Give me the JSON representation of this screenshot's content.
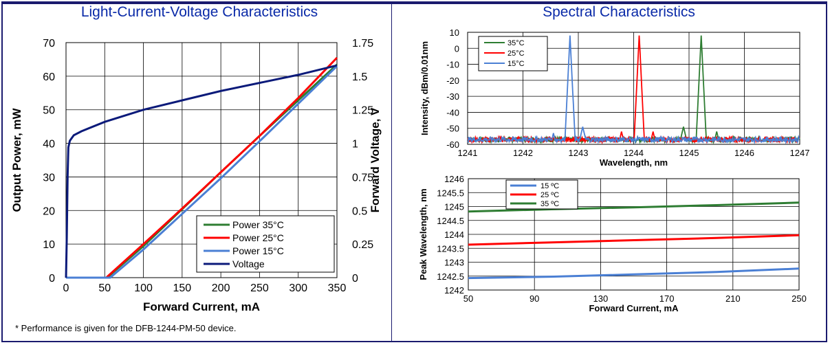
{
  "panels": {
    "left_title": "Light-Current-Voltage Characteristics",
    "right_title": "Spectral Characteristics"
  },
  "footnote": "* Performance is given for the DFB-1244-PM-50 device.",
  "colors": {
    "frame": "#1a1a6e",
    "title": "#0a2aa8",
    "green": "#2e7d32",
    "red": "#ff0000",
    "blue": "#4a7fd4",
    "navy": "#0b1a7a"
  },
  "chart_data": [
    {
      "type": "line",
      "xlabel": "Forward Current, mA",
      "ylabel": "Output Power, mW",
      "y2label": "Forward Voltage, V",
      "xlim": [
        0,
        350
      ],
      "ylim": [
        0,
        70
      ],
      "y2lim": [
        0,
        1.75
      ],
      "xticks": [
        "0",
        "50",
        "100",
        "150",
        "200",
        "250",
        "300",
        "350"
      ],
      "yticks": [
        "0",
        "10",
        "20",
        "30",
        "40",
        "50",
        "60",
        "70"
      ],
      "y2ticks": [
        "0",
        "0.25",
        "0.5",
        "0.75",
        "1",
        "1.25",
        "1.5",
        "1.75"
      ],
      "grid": true,
      "legend_position": "bottom-right",
      "series": [
        {
          "name": "Power  35°C",
          "color": "#2e7d32",
          "axis": "left",
          "x": [
            0,
            53,
            100,
            150,
            200,
            250,
            300,
            350
          ],
          "y": [
            0,
            0,
            9.4,
            20.4,
            31.4,
            42.2,
            52.8,
            63.5
          ]
        },
        {
          "name": "Power  25°C",
          "color": "#ff0000",
          "axis": "left",
          "x": [
            0,
            52,
            100,
            150,
            200,
            250,
            300,
            350
          ],
          "y": [
            0,
            0,
            10.0,
            20.6,
            31.4,
            42.2,
            53.5,
            65.5
          ]
        },
        {
          "name": "Power  15°C",
          "color": "#4a7fd4",
          "axis": "left",
          "x": [
            0,
            57,
            100,
            150,
            200,
            250,
            300,
            350
          ],
          "y": [
            0,
            0,
            8.4,
            19.0,
            29.6,
            40.6,
            51.8,
            63.0
          ]
        },
        {
          "name": "Voltage",
          "color": "#0b1a7a",
          "axis": "right",
          "x": [
            0,
            1,
            2,
            3,
            5,
            10,
            20,
            50,
            100,
            150,
            200,
            250,
            300,
            350
          ],
          "y": [
            0,
            0.3,
            0.75,
            0.97,
            1.02,
            1.06,
            1.09,
            1.16,
            1.25,
            1.32,
            1.39,
            1.45,
            1.51,
            1.58
          ]
        }
      ]
    },
    {
      "type": "line",
      "xlabel": "Wavelength, nm",
      "ylabel": "Intensity, dBm/0.01nm",
      "xlim": [
        1241,
        1247
      ],
      "ylim": [
        -60,
        10
      ],
      "xticks": [
        "1241",
        "1242",
        "1243",
        "1244",
        "1245",
        "1246",
        "1247"
      ],
      "yticks": [
        "10",
        "0",
        "-10",
        "-20",
        "-30",
        "-40",
        "-50",
        "-60"
      ],
      "grid": true,
      "legend_position": "top-left",
      "series": [
        {
          "name": "35°C",
          "color": "#2e7d32",
          "peak_x": 1245.22,
          "peak_y": 8,
          "floor": -57,
          "side_peaks": [
            [
              1244.9,
              -49
            ],
            [
              1245.5,
              -52
            ]
          ]
        },
        {
          "name": "25°C",
          "color": "#ff0000",
          "peak_x": 1244.1,
          "peak_y": 8,
          "floor": -57,
          "side_peaks": [
            [
              1243.78,
              -52
            ],
            [
              1244.35,
              -52
            ]
          ]
        },
        {
          "name": "15°C",
          "color": "#4a7fd4",
          "peak_x": 1242.85,
          "peak_y": 8,
          "floor": -57,
          "side_peaks": [
            [
              1242.55,
              -53
            ],
            [
              1243.08,
              -49
            ]
          ]
        }
      ]
    },
    {
      "type": "line",
      "xlabel": "Forward Current, mA",
      "ylabel": "Peak Wavelength, nm",
      "xlim": [
        50,
        250
      ],
      "ylim": [
        1242,
        1246
      ],
      "xticks": [
        "50",
        "90",
        "130",
        "170",
        "210",
        "250"
      ],
      "yticks": [
        "1246",
        "1245.5",
        "1245",
        "1244.5",
        "1244",
        "1243.5",
        "1243",
        "1242.5",
        "1242"
      ],
      "grid": true,
      "legend_position": "top-left",
      "series": [
        {
          "name": "15 ºC",
          "color": "#4a7fd4",
          "x": [
            50,
            100,
            150,
            200,
            250
          ],
          "y": [
            1242.43,
            1242.48,
            1242.56,
            1242.65,
            1242.77
          ]
        },
        {
          "name": "25 ºC",
          "color": "#ff0000",
          "x": [
            50,
            100,
            150,
            200,
            250
          ],
          "y": [
            1243.63,
            1243.71,
            1243.79,
            1243.87,
            1243.97
          ]
        },
        {
          "name": "35 ºC",
          "color": "#2e7d32",
          "x": [
            50,
            100,
            150,
            200,
            250
          ],
          "y": [
            1244.82,
            1244.9,
            1244.97,
            1245.05,
            1245.14
          ]
        }
      ]
    }
  ]
}
